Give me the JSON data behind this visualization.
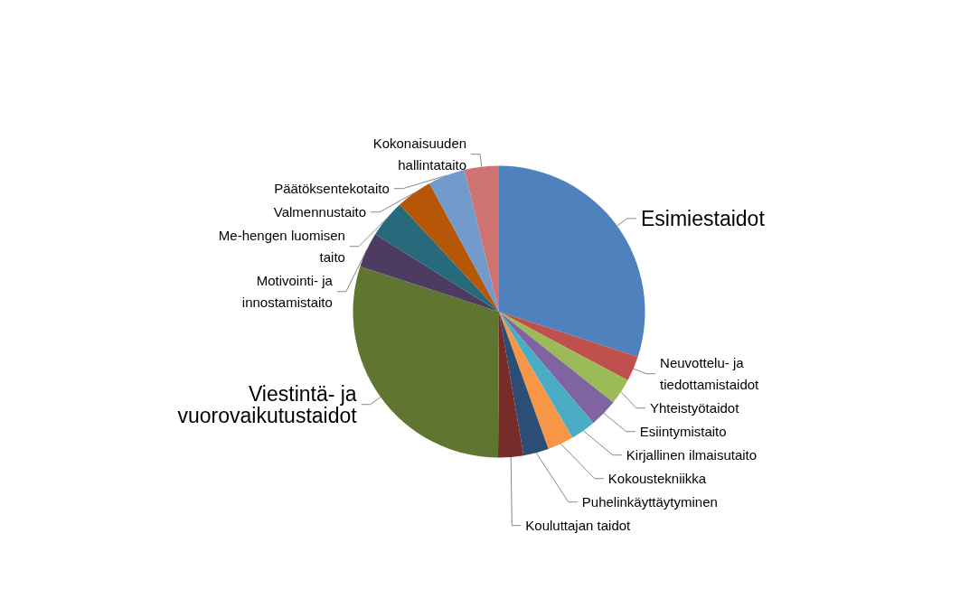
{
  "chart_data": {
    "type": "pie",
    "categories": [
      "Esimiestaidot",
      "Neuvottelu- ja\ntiedottamistaidot",
      "Yhteistyötaidot",
      "Esiintymistaito",
      "Kirjallinen ilmaisutaito",
      "Kokoustekniikka",
      "Puhelinkäyttäytyminen",
      "Kouluttajan taidot",
      "Viestintä- ja\nvuorovaikutustaidot",
      "Motivointi- ja\ninnostamistaito",
      "Me-hengen luomisen\ntaito",
      "Valmennustaito",
      "Päätöksentekotaito",
      "Kokonaisuuden\nhallintataito"
    ],
    "values": [
      30,
      2.8,
      2.9,
      3.1,
      2.8,
      2.9,
      2.8,
      2.8,
      29.9,
      3.9,
      4.2,
      4.0,
      4.1,
      3.8
    ],
    "colors": [
      "#4f81bd",
      "#c0504d",
      "#9bbb59",
      "#8064a2",
      "#4bacc6",
      "#f79646",
      "#2c4d75",
      "#772c2a",
      "#5f7530",
      "#4d3b62",
      "#276a7c",
      "#b65708",
      "#729aca",
      "#cd7371"
    ],
    "legend": false
  }
}
